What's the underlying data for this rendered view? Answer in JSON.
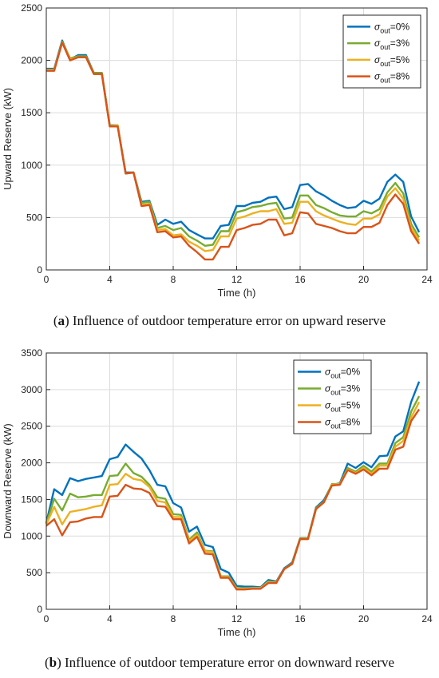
{
  "chart_data": [
    {
      "type": "line",
      "panel": "a",
      "caption": "Influence of outdoor temperature error on upward reserve",
      "xlabel": "Time (h)",
      "ylabel": "Upward Reserve (kW)",
      "xlim": [
        0,
        24
      ],
      "ylim": [
        0,
        2500
      ],
      "xticks": [
        0,
        4,
        8,
        12,
        16,
        20,
        24
      ],
      "yticks": [
        0,
        500,
        1000,
        1500,
        2000,
        2500
      ],
      "grid": true,
      "legend_position": "top-right",
      "x": [
        0,
        0.5,
        1,
        1.5,
        2,
        2.5,
        3,
        3.5,
        4,
        4.5,
        5,
        5.5,
        6,
        6.5,
        7,
        7.5,
        8,
        8.5,
        9,
        9.5,
        10,
        10.5,
        11,
        11.5,
        12,
        12.5,
        13,
        13.5,
        14,
        14.5,
        15,
        15.5,
        16,
        16.5,
        17,
        17.5,
        18,
        18.5,
        19,
        19.5,
        20,
        20.5,
        21,
        21.5,
        22,
        22.5,
        23,
        23.5
      ],
      "series": [
        {
          "name": "σout=0%",
          "color": "#0072BD",
          "values": [
            1920,
            1920,
            2190,
            2010,
            2050,
            2050,
            1880,
            1880,
            1380,
            1380,
            930,
            930,
            650,
            660,
            430,
            480,
            440,
            460,
            380,
            340,
            300,
            300,
            420,
            430,
            610,
            610,
            640,
            650,
            690,
            700,
            580,
            600,
            810,
            820,
            750,
            710,
            660,
            620,
            590,
            600,
            660,
            630,
            680,
            840,
            910,
            840,
            510,
            360
          ]
        },
        {
          "name": "σout=3%",
          "color": "#77AC30",
          "values": [
            1910,
            1910,
            2180,
            2020,
            2040,
            2040,
            1880,
            1880,
            1380,
            1380,
            920,
            930,
            640,
            650,
            400,
            420,
            380,
            400,
            320,
            280,
            230,
            240,
            370,
            370,
            550,
            570,
            600,
            610,
            630,
            640,
            490,
            500,
            710,
            710,
            620,
            590,
            550,
            520,
            510,
            510,
            560,
            540,
            580,
            740,
            830,
            730,
            440,
            310
          ]
        },
        {
          "name": "σout=5%",
          "color": "#EDB120",
          "values": [
            1910,
            1910,
            2170,
            2010,
            2030,
            2030,
            1870,
            1870,
            1370,
            1380,
            920,
            930,
            620,
            630,
            380,
            390,
            330,
            340,
            270,
            230,
            180,
            190,
            320,
            320,
            490,
            510,
            540,
            560,
            560,
            580,
            440,
            450,
            650,
            650,
            560,
            520,
            490,
            460,
            440,
            430,
            490,
            490,
            530,
            700,
            780,
            680,
            400,
            280
          ]
        },
        {
          "name": "σout=8%",
          "color": "#D95319",
          "values": [
            1900,
            1900,
            2170,
            2000,
            2030,
            2030,
            1870,
            1870,
            1370,
            1370,
            920,
            930,
            610,
            620,
            360,
            370,
            310,
            320,
            230,
            170,
            100,
            100,
            220,
            220,
            380,
            400,
            430,
            440,
            480,
            480,
            330,
            350,
            550,
            540,
            440,
            420,
            400,
            370,
            350,
            350,
            410,
            410,
            450,
            620,
            720,
            630,
            370,
            250
          ]
        }
      ]
    },
    {
      "type": "line",
      "panel": "b",
      "caption": "Influence of outdoor temperature error on downward reserve",
      "xlabel": "Time (h)",
      "ylabel": "Downward Reserve (kW)",
      "xlim": [
        0,
        24
      ],
      "ylim": [
        0,
        3500
      ],
      "xticks": [
        0,
        4,
        8,
        12,
        16,
        20,
        24
      ],
      "yticks": [
        0,
        500,
        1000,
        1500,
        2000,
        2500,
        3000,
        3500
      ],
      "grid": true,
      "legend_position": "top-center",
      "x": [
        0,
        0.5,
        1,
        1.5,
        2,
        2.5,
        3,
        3.5,
        4,
        4.5,
        5,
        5.5,
        6,
        6.5,
        7,
        7.5,
        8,
        8.5,
        9,
        9.5,
        10,
        10.5,
        11,
        11.5,
        12,
        12.5,
        13,
        13.5,
        14,
        14.5,
        15,
        15.5,
        16,
        16.5,
        17,
        17.5,
        18,
        18.5,
        19,
        19.5,
        20,
        20.5,
        21,
        21.5,
        22,
        22.5,
        23,
        23.5
      ],
      "series": [
        {
          "name": "σout=0%",
          "color": "#0072BD",
          "values": [
            1180,
            1640,
            1560,
            1790,
            1750,
            1780,
            1800,
            1820,
            2050,
            2080,
            2250,
            2150,
            2060,
            1900,
            1700,
            1680,
            1450,
            1390,
            1060,
            1130,
            880,
            850,
            550,
            500,
            320,
            310,
            310,
            300,
            400,
            380,
            560,
            640,
            970,
            970,
            1390,
            1490,
            1700,
            1720,
            1990,
            1930,
            2010,
            1940,
            2090,
            2100,
            2360,
            2430,
            2830,
            3110
          ]
        },
        {
          "name": "σout=3%",
          "color": "#77AC30",
          "values": [
            1170,
            1510,
            1350,
            1580,
            1530,
            1540,
            1560,
            1560,
            1820,
            1830,
            1990,
            1860,
            1810,
            1700,
            1530,
            1510,
            1300,
            1290,
            950,
            1050,
            800,
            790,
            450,
            450,
            290,
            290,
            290,
            290,
            380,
            370,
            550,
            630,
            970,
            970,
            1380,
            1470,
            1710,
            1710,
            1930,
            1880,
            1960,
            1880,
            1990,
            1990,
            2270,
            2350,
            2700,
            2910
          ]
        },
        {
          "name": "σout=5%",
          "color": "#EDB120",
          "values": [
            1160,
            1400,
            1160,
            1330,
            1350,
            1370,
            1400,
            1420,
            1700,
            1710,
            1850,
            1780,
            1760,
            1670,
            1480,
            1460,
            1260,
            1260,
            930,
            1020,
            790,
            780,
            440,
            440,
            280,
            280,
            290,
            290,
            370,
            370,
            550,
            620,
            960,
            960,
            1370,
            1460,
            1700,
            1710,
            1910,
            1860,
            1930,
            1850,
            1960,
            1960,
            2220,
            2300,
            2620,
            2830
          ]
        },
        {
          "name": "σout=8%",
          "color": "#D95319",
          "values": [
            1140,
            1230,
            1010,
            1190,
            1200,
            1240,
            1260,
            1260,
            1540,
            1550,
            1700,
            1650,
            1640,
            1590,
            1410,
            1400,
            1230,
            1230,
            900,
            990,
            760,
            750,
            430,
            430,
            270,
            270,
            280,
            280,
            360,
            360,
            550,
            620,
            960,
            960,
            1370,
            1460,
            1690,
            1700,
            1900,
            1850,
            1910,
            1830,
            1920,
            1920,
            2180,
            2220,
            2570,
            2730
          ]
        }
      ]
    }
  ]
}
